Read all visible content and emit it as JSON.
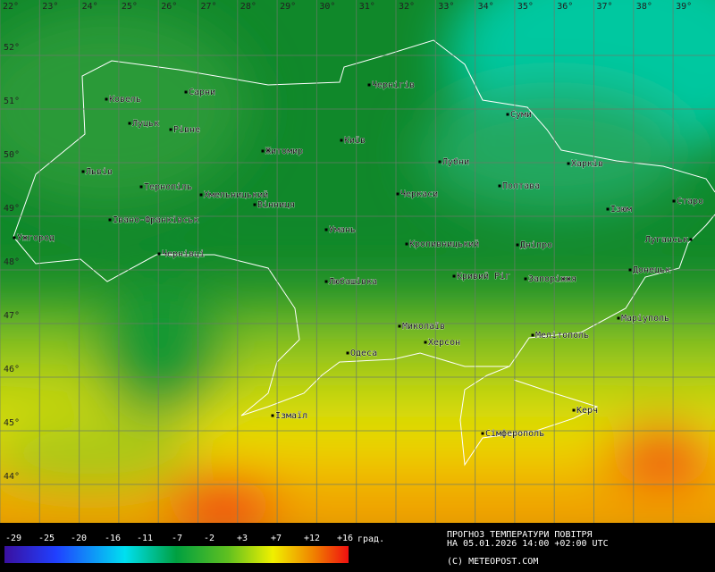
{
  "map": {
    "longitudes": [
      "22°",
      "23°",
      "24°",
      "25°",
      "26°",
      "27°",
      "28°",
      "29°",
      "30°",
      "31°",
      "32°",
      "33°",
      "34°",
      "35°",
      "36°",
      "37°",
      "38°",
      "39°"
    ],
    "latitudes": [
      "52°",
      "51°",
      "50°",
      "49°",
      "48°",
      "47°",
      "46°",
      "45°",
      "44°"
    ],
    "cities": [
      "Ковель",
      "Сарни",
      "Луцьк",
      "Рівне",
      "Чернігів",
      "Суми",
      "Київ",
      "Житомир",
      "Львів",
      "Лубни",
      "Харків",
      "Тернопіль",
      "Хмельницький",
      "Полтава",
      "Черкаси",
      "Вінниця",
      "Старо",
      "Ізюм",
      "Івано-Франківськ",
      "Умань",
      "Ужгород",
      "Луганськ",
      "Кропивницький",
      "Дніпро",
      "Чернівці",
      "Кривий Ріг",
      "Запоріжжя",
      "Донецьк",
      "Любашівка",
      "Маріуполь",
      "Миколаїв",
      "Мелітополь",
      "Херсон",
      "Одеса",
      "Керч",
      "Ізмаїл",
      "Сімферополь"
    ]
  },
  "legend": {
    "ticks": [
      "-29",
      "-25",
      "-20",
      "-16",
      "-11",
      "-7",
      "-2",
      "+3",
      "+7",
      "+12",
      "+16"
    ],
    "unit": "град."
  },
  "caption": {
    "title": "ПРОГНОЗ ТЕМПЕРАТУРИ ПОВІТРЯ",
    "time": "НА 05.01.2026 14:00 +02:00 UTC",
    "copyright": "(C) METEOPOST.COM"
  }
}
